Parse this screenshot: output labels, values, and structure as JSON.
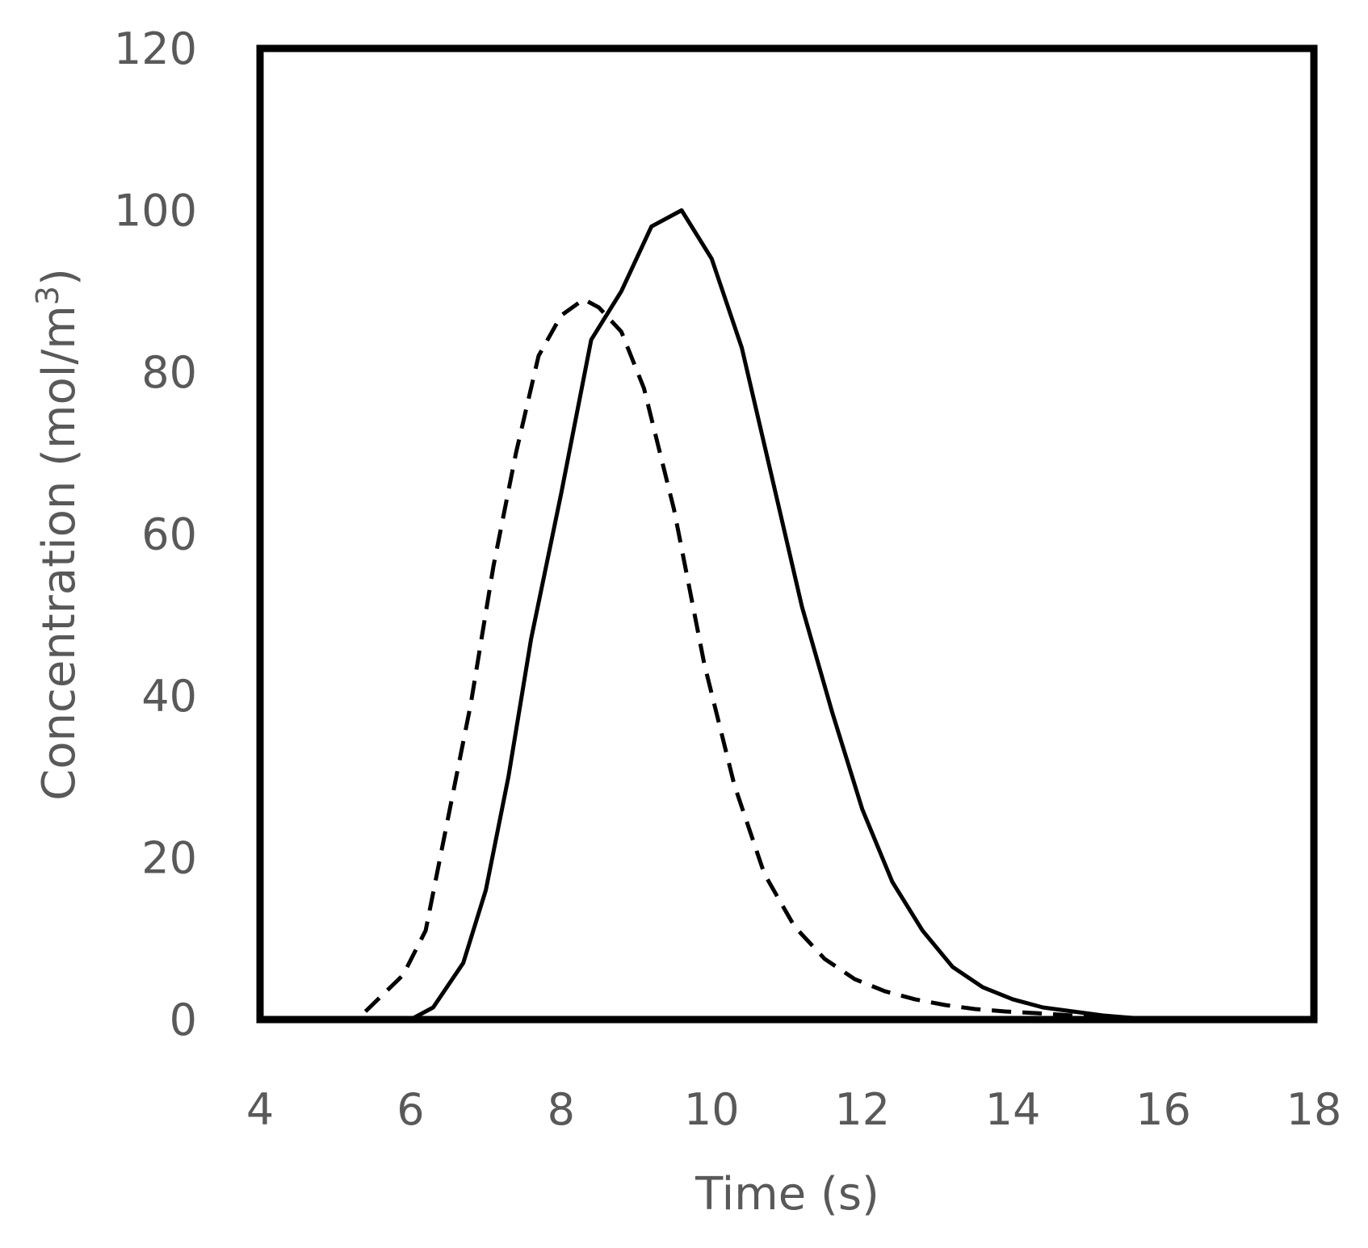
{
  "chart_data": {
    "type": "line",
    "title": "",
    "xlabel": "Time (s)",
    "ylabel": "Concentration (mol/m",
    "ylabel_superscript": "3",
    "ylabel_close": ")",
    "xlim": [
      4,
      18
    ],
    "ylim": [
      0,
      120
    ],
    "x_ticks": [
      4,
      6,
      8,
      10,
      12,
      14,
      16,
      18
    ],
    "y_ticks": [
      0,
      20,
      40,
      60,
      80,
      100,
      120
    ],
    "grid": false,
    "legend": "none",
    "colors": {
      "line": "#000000",
      "frame": "#000000",
      "text": "#595959"
    },
    "series": [
      {
        "style": "solid",
        "x": [
          6.0,
          6.3,
          6.7,
          7.0,
          7.3,
          7.6,
          8.0,
          8.4,
          8.8,
          9.2,
          9.6,
          10.0,
          10.4,
          10.8,
          11.2,
          11.6,
          12.0,
          12.4,
          12.8,
          13.2,
          13.6,
          14.0,
          14.4,
          14.8,
          15.2,
          15.6,
          16.0
        ],
        "y": [
          0,
          1.5,
          7,
          16,
          30,
          47,
          65,
          84,
          90,
          98,
          100,
          94,
          83,
          67,
          51,
          38,
          26,
          17,
          11,
          6.5,
          4,
          2.5,
          1.5,
          1.0,
          0.5,
          0.2,
          0
        ]
      },
      {
        "style": "dashed",
        "x": [
          5.4,
          5.9,
          6.2,
          6.5,
          6.8,
          7.1,
          7.4,
          7.7,
          8.0,
          8.3,
          8.5,
          8.8,
          9.1,
          9.5,
          9.9,
          10.3,
          10.7,
          11.1,
          11.5,
          11.9,
          12.3,
          12.7,
          13.1,
          13.5,
          13.9,
          14.3,
          14.8,
          15.3
        ],
        "y": [
          1,
          5.5,
          11,
          25,
          39,
          56,
          70,
          82,
          87,
          89,
          88,
          85,
          78,
          63,
          44,
          29,
          18,
          11.5,
          7.5,
          5,
          3.5,
          2.5,
          1.8,
          1.3,
          1.0,
          0.8,
          0.5,
          0.3
        ]
      }
    ]
  }
}
